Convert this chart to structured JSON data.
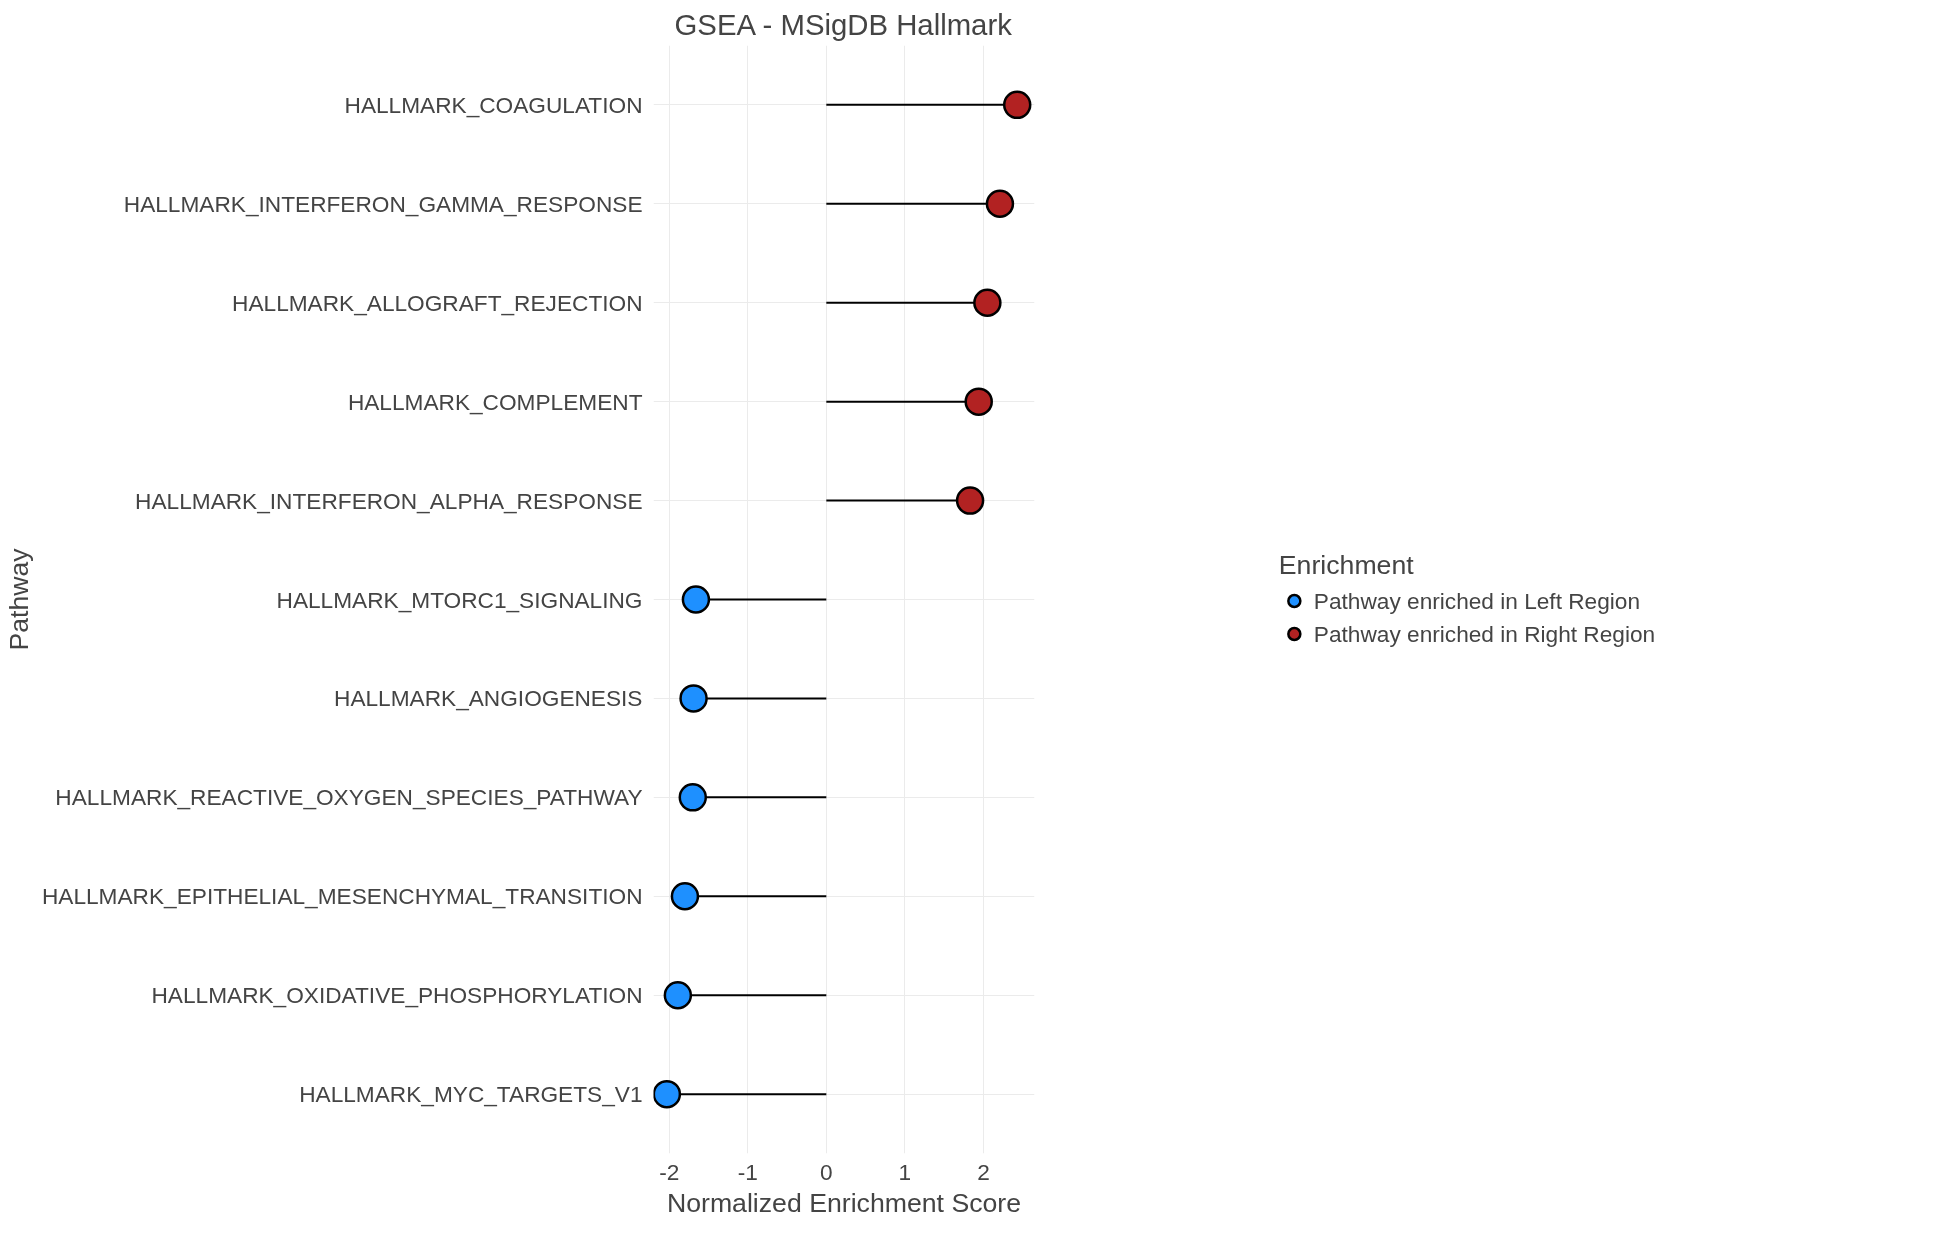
{
  "chart_data": {
    "type": "lollipop",
    "orientation": "horizontal",
    "title": "GSEA - MSigDB Hallmark",
    "xlabel": "Normalized Enrichment Score",
    "ylabel": "Pathway",
    "legend_title": "Enrichment",
    "categories": [
      "HALLMARK_COAGULATION",
      "HALLMARK_INTERFERON_GAMMA_RESPONSE",
      "HALLMARK_ALLOGRAFT_REJECTION",
      "HALLMARK_COMPLEMENT",
      "HALLMARK_INTERFERON_ALPHA_RESPONSE",
      "HALLMARK_MTORC1_SIGNALING",
      "HALLMARK_ANGIOGENESIS",
      "HALLMARK_REACTIVE_OXYGEN_SPECIES_PATHWAY",
      "HALLMARK_EPITHELIAL_MESENCHYMAL_TRANSITION",
      "HALLMARK_OXIDATIVE_PHOSPHORYLATION",
      "HALLMARK_MYC_TARGETS_V1"
    ],
    "series": [
      {
        "name": "Pathway enriched in Left Region",
        "color": "#1e90ff",
        "values": [
          null,
          null,
          null,
          null,
          null,
          -1.66,
          -1.69,
          -1.7,
          -1.8,
          -1.89,
          -2.03
        ]
      },
      {
        "name": "Pathway enriched in Right Region",
        "color": "#b22222",
        "values": [
          2.43,
          2.21,
          2.05,
          1.94,
          1.83,
          null,
          null,
          null,
          null,
          null,
          null
        ]
      }
    ],
    "xlim": [
      -2.2,
      2.65
    ],
    "xticks": [
      -2,
      -1,
      0,
      1,
      2
    ],
    "grid": true,
    "legend": "right",
    "marker": "circle"
  }
}
